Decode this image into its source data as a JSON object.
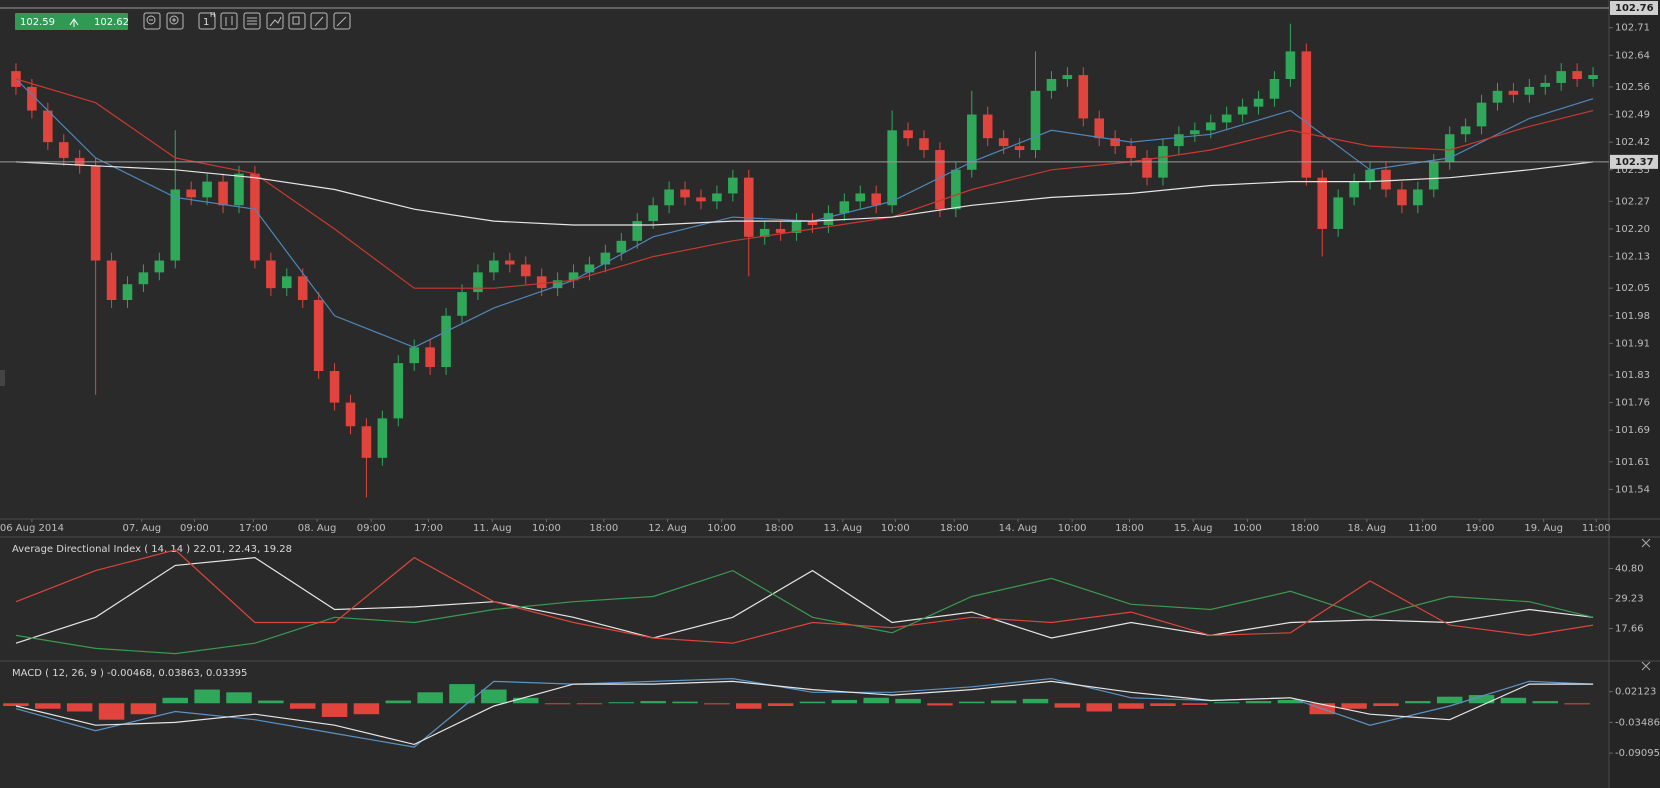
{
  "toolbar": {
    "bid": 102.59,
    "ask": 102.62,
    "timeframe": "1",
    "timeframe_unit": "H"
  },
  "chart_data": [
    {
      "type": "candlestick",
      "up_color": "#2fa85a",
      "down_color": "#e0443c",
      "xlim": [
        -0.5,
        100
      ],
      "ylim": [
        101.465,
        102.765
      ],
      "grid": false,
      "xticks": [
        {
          "value": 1,
          "label": "06 Aug 2014"
        },
        {
          "value": 7.9,
          "label": "07. Aug"
        },
        {
          "value": 11.2,
          "label": "09:00"
        },
        {
          "value": 14.9,
          "label": "17:00"
        },
        {
          "value": 18.9,
          "label": "08. Aug"
        },
        {
          "value": 22.3,
          "label": "09:00"
        },
        {
          "value": 25.9,
          "label": "17:00"
        },
        {
          "value": 29.9,
          "label": "11. Aug"
        },
        {
          "value": 33.3,
          "label": "10:00"
        },
        {
          "value": 36.9,
          "label": "18:00"
        },
        {
          "value": 40.9,
          "label": "12. Aug"
        },
        {
          "value": 44.3,
          "label": "10:00"
        },
        {
          "value": 47.9,
          "label": "18:00"
        },
        {
          "value": 51.9,
          "label": "13. Aug"
        },
        {
          "value": 55.2,
          "label": "10:00"
        },
        {
          "value": 58.9,
          "label": "18:00"
        },
        {
          "value": 62.9,
          "label": "14. Aug"
        },
        {
          "value": 66.3,
          "label": "10:00"
        },
        {
          "value": 69.9,
          "label": "18:00"
        },
        {
          "value": 73.9,
          "label": "15. Aug"
        },
        {
          "value": 77.3,
          "label": "10:00"
        },
        {
          "value": 80.9,
          "label": "18:00"
        },
        {
          "value": 84.8,
          "label": "18. Aug"
        },
        {
          "value": 88.3,
          "label": "11:00"
        },
        {
          "value": 91.9,
          "label": "19:00"
        },
        {
          "value": 95.9,
          "label": "19. Aug"
        },
        {
          "value": 99.2,
          "label": "11:00"
        }
      ],
      "yticks": [
        101.54,
        101.61,
        101.69,
        101.76,
        101.83,
        101.91,
        101.98,
        102.05,
        102.13,
        {
          "value": 102.2,
          "label": "102.20"
        },
        102.27,
        102.35,
        102.42,
        102.49,
        102.56,
        102.64,
        102.71
      ],
      "price_markers": [
        102.76,
        102.37
      ],
      "open": [
        102.6,
        102.56,
        102.5,
        102.42,
        102.38,
        102.36,
        102.12,
        102.02,
        102.06,
        102.09,
        102.12,
        102.3,
        102.28,
        102.32,
        102.26,
        102.34,
        102.12,
        102.05,
        102.08,
        102.02,
        101.84,
        101.76,
        101.7,
        101.62,
        101.72,
        101.86,
        101.9,
        101.85,
        101.98,
        102.04,
        102.09,
        102.12,
        102.11,
        102.08,
        102.05,
        102.07,
        102.09,
        102.11,
        102.14,
        102.17,
        102.22,
        102.26,
        102.3,
        102.28,
        102.27,
        102.29,
        102.33,
        102.18,
        102.2,
        102.19,
        102.22,
        102.21,
        102.24,
        102.27,
        102.29,
        102.26,
        102.45,
        102.43,
        102.4,
        102.25,
        102.35,
        102.49,
        102.43,
        102.41,
        102.4,
        102.55,
        102.58,
        102.59,
        102.48,
        102.43,
        102.41,
        102.38,
        102.33,
        102.41,
        102.44,
        102.45,
        102.47,
        102.49,
        102.51,
        102.53,
        102.58,
        102.65,
        102.33,
        102.2,
        102.28,
        102.32,
        102.35,
        102.3,
        102.26,
        102.3,
        102.37,
        102.44,
        102.46,
        102.52,
        102.55,
        102.54,
        102.56,
        102.57,
        102.6,
        102.58
      ],
      "high": [
        102.62,
        102.58,
        102.52,
        102.44,
        102.4,
        102.38,
        102.14,
        102.08,
        102.11,
        102.14,
        102.45,
        102.32,
        102.34,
        102.34,
        102.36,
        102.36,
        102.14,
        102.1,
        102.1,
        102.04,
        101.86,
        101.78,
        101.72,
        101.74,
        101.88,
        101.92,
        101.92,
        102.0,
        102.06,
        102.11,
        102.14,
        102.14,
        102.13,
        102.1,
        102.09,
        102.11,
        102.13,
        102.16,
        102.19,
        102.24,
        102.28,
        102.32,
        102.32,
        102.3,
        102.31,
        102.35,
        102.35,
        102.22,
        102.22,
        102.24,
        102.24,
        102.26,
        102.29,
        102.31,
        102.31,
        102.5,
        102.47,
        102.45,
        102.42,
        102.37,
        102.55,
        102.51,
        102.45,
        102.43,
        102.65,
        102.6,
        102.61,
        102.61,
        102.5,
        102.45,
        102.43,
        102.4,
        102.43,
        102.46,
        102.47,
        102.49,
        102.51,
        102.53,
        102.55,
        102.6,
        102.72,
        102.67,
        102.35,
        102.3,
        102.34,
        102.37,
        102.37,
        102.32,
        102.32,
        102.39,
        102.46,
        102.48,
        102.54,
        102.57,
        102.57,
        102.58,
        102.59,
        102.62,
        102.62,
        102.61
      ],
      "low": [
        102.54,
        102.48,
        102.4,
        102.36,
        102.34,
        101.78,
        102.0,
        102.0,
        102.04,
        102.07,
        102.1,
        102.26,
        102.26,
        102.24,
        102.24,
        102.1,
        102.03,
        102.03,
        102.0,
        101.82,
        101.74,
        101.68,
        101.52,
        101.6,
        101.7,
        101.84,
        101.83,
        101.83,
        101.96,
        102.02,
        102.07,
        102.09,
        102.06,
        102.03,
        102.03,
        102.05,
        102.07,
        102.09,
        102.12,
        102.15,
        102.2,
        102.24,
        102.26,
        102.25,
        102.25,
        102.27,
        102.08,
        102.16,
        102.17,
        102.17,
        102.19,
        102.19,
        102.22,
        102.25,
        102.24,
        102.24,
        102.41,
        102.38,
        102.23,
        102.23,
        102.33,
        102.41,
        102.39,
        102.38,
        102.38,
        102.53,
        102.56,
        102.46,
        102.41,
        102.39,
        102.36,
        102.31,
        102.31,
        102.39,
        102.42,
        102.43,
        102.45,
        102.47,
        102.49,
        102.51,
        102.56,
        102.31,
        102.13,
        102.18,
        102.26,
        102.3,
        102.28,
        102.24,
        102.24,
        102.28,
        102.35,
        102.42,
        102.44,
        102.5,
        102.52,
        102.52,
        102.54,
        102.55,
        102.56,
        102.56
      ],
      "close": [
        102.56,
        102.5,
        102.42,
        102.38,
        102.36,
        102.12,
        102.02,
        102.06,
        102.09,
        102.12,
        102.3,
        102.28,
        102.32,
        102.26,
        102.34,
        102.12,
        102.05,
        102.08,
        102.02,
        101.84,
        101.76,
        101.7,
        101.62,
        101.72,
        101.86,
        101.9,
        101.85,
        101.98,
        102.04,
        102.09,
        102.12,
        102.11,
        102.08,
        102.05,
        102.07,
        102.09,
        102.11,
        102.14,
        102.17,
        102.22,
        102.26,
        102.3,
        102.28,
        102.27,
        102.29,
        102.33,
        102.18,
        102.2,
        102.19,
        102.22,
        102.21,
        102.24,
        102.27,
        102.29,
        102.26,
        102.45,
        102.43,
        102.4,
        102.25,
        102.35,
        102.49,
        102.43,
        102.41,
        102.4,
        102.55,
        102.58,
        102.59,
        102.48,
        102.43,
        102.41,
        102.38,
        102.33,
        102.41,
        102.44,
        102.45,
        102.47,
        102.49,
        102.51,
        102.53,
        102.58,
        102.65,
        102.33,
        102.2,
        102.28,
        102.32,
        102.35,
        102.3,
        102.26,
        102.3,
        102.37,
        102.44,
        102.46,
        102.52,
        102.55,
        102.54,
        102.56,
        102.57,
        102.6,
        102.58,
        102.59
      ],
      "series": [
        {
          "color": "#4f86b8",
          "x": [
            0,
            5,
            10,
            15,
            20,
            25,
            30,
            35,
            40,
            45,
            50,
            55,
            60,
            65,
            70,
            75,
            80,
            85,
            90,
            95,
            99
          ],
          "values": [
            102.58,
            102.38,
            102.28,
            102.25,
            101.98,
            101.9,
            102.0,
            102.07,
            102.18,
            102.23,
            102.22,
            102.27,
            102.37,
            102.45,
            102.42,
            102.44,
            102.5,
            102.35,
            102.38,
            102.48,
            102.53
          ]
        },
        {
          "color": "#c8392f",
          "x": [
            0,
            5,
            10,
            15,
            20,
            25,
            30,
            35,
            40,
            45,
            50,
            55,
            60,
            65,
            70,
            75,
            80,
            85,
            90,
            95,
            99
          ],
          "values": [
            102.58,
            102.52,
            102.38,
            102.34,
            102.2,
            102.05,
            102.05,
            102.07,
            102.13,
            102.17,
            102.2,
            102.23,
            102.3,
            102.35,
            102.37,
            102.4,
            102.45,
            102.41,
            102.4,
            102.46,
            102.5
          ]
        },
        {
          "color": "#e6e6e6",
          "x": [
            0,
            5,
            10,
            15,
            20,
            25,
            30,
            35,
            40,
            45,
            50,
            55,
            60,
            65,
            70,
            75,
            80,
            85,
            90,
            95,
            99
          ],
          "values": [
            102.37,
            102.36,
            102.35,
            102.33,
            102.3,
            102.25,
            102.22,
            102.21,
            102.21,
            102.22,
            102.22,
            102.23,
            102.26,
            102.28,
            102.29,
            102.31,
            102.32,
            102.32,
            102.33,
            102.35,
            102.37
          ]
        }
      ]
    },
    {
      "type": "line",
      "title": "Average Directional Index ( 14, 14 ) 22.01, 22.43, 19.28",
      "xlim": [
        -0.5,
        100
      ],
      "ylim": [
        6.3,
        51.8
      ],
      "yticks": [
        {
          "value": 40.8,
          "label": "40.80"
        },
        29.23,
        17.66
      ],
      "series": [
        {
          "color": "#e6e6e6",
          "x": [
            0,
            5,
            10,
            15,
            20,
            25,
            30,
            35,
            40,
            45,
            50,
            55,
            60,
            65,
            70,
            75,
            80,
            85,
            90,
            95,
            99
          ],
          "values": [
            12,
            22,
            42,
            45,
            25,
            26,
            28,
            22,
            14,
            22,
            40,
            20,
            24,
            14,
            20,
            15,
            20,
            21,
            20,
            25,
            22
          ]
        },
        {
          "color": "#3a9a50",
          "x": [
            0,
            5,
            10,
            15,
            20,
            25,
            30,
            35,
            40,
            45,
            50,
            55,
            60,
            65,
            70,
            75,
            80,
            85,
            90,
            95,
            99
          ],
          "values": [
            15,
            10,
            8,
            12,
            22,
            20,
            25,
            28,
            30,
            40,
            22,
            16,
            30,
            37,
            27,
            25,
            32,
            22,
            30,
            28,
            22
          ]
        },
        {
          "color": "#d9463a",
          "x": [
            0,
            5,
            10,
            15,
            20,
            25,
            30,
            35,
            40,
            45,
            50,
            55,
            60,
            65,
            70,
            75,
            80,
            85,
            90,
            95,
            99
          ],
          "values": [
            28,
            40,
            48,
            20,
            20,
            45,
            28,
            20,
            14,
            12,
            20,
            18,
            22,
            20,
            24,
            15,
            16,
            36,
            19,
            15,
            19
          ]
        }
      ]
    },
    {
      "type": "line",
      "title": "MACD ( 12, 26, 9 ) -0.00468, 0.03863, 0.03395",
      "xlim": [
        -0.5,
        100
      ],
      "ylim": [
        -0.151,
        0.0735
      ],
      "yticks": [
        0.02123,
        -0.03486,
        -0.09095
      ],
      "positive_color": "#2fa85a",
      "negative_color": "#e0443c",
      "histogram": {
        "x": [
          0,
          2,
          4,
          6,
          8,
          10,
          12,
          14,
          16,
          18,
          20,
          22,
          24,
          26,
          28,
          30,
          32,
          34,
          36,
          38,
          40,
          42,
          44,
          46,
          48,
          50,
          52,
          54,
          56,
          58,
          60,
          62,
          64,
          66,
          68,
          70,
          72,
          74,
          76,
          78,
          80,
          82,
          84,
          86,
          88,
          90,
          92,
          94,
          96,
          98
        ],
        "values": [
          -0.005,
          -0.01,
          -0.015,
          -0.03,
          -0.02,
          0.01,
          0.025,
          0.02,
          0.005,
          -0.01,
          -0.025,
          -0.02,
          0.005,
          0.02,
          0.035,
          0.025,
          0.01,
          -0.001,
          -0.001,
          0.002,
          0.004,
          0.003,
          -0.002,
          -0.01,
          -0.005,
          0.003,
          0.006,
          0.01,
          0.008,
          -0.004,
          0.003,
          0.005,
          0.008,
          -0.008,
          -0.015,
          -0.01,
          -0.005,
          -0.003,
          0.002,
          0.004,
          0.006,
          -0.02,
          -0.01,
          -0.005,
          0.004,
          0.012,
          0.015,
          0.01,
          0.004,
          -0.002
        ]
      },
      "series": [
        {
          "color": "#5b93c4",
          "x": [
            0,
            5,
            10,
            15,
            20,
            25,
            30,
            35,
            40,
            45,
            50,
            55,
            60,
            65,
            70,
            75,
            80,
            85,
            90,
            95,
            99
          ],
          "values": [
            -0.01,
            -0.05,
            -0.015,
            -0.03,
            -0.055,
            -0.08,
            0.04,
            0.035,
            0.04,
            0.045,
            0.02,
            0.02,
            0.03,
            0.045,
            0.01,
            0.005,
            0.01,
            -0.04,
            -0.005,
            0.04,
            0.035
          ]
        },
        {
          "color": "#e6e6e6",
          "x": [
            0,
            5,
            10,
            15,
            20,
            25,
            30,
            35,
            40,
            45,
            50,
            55,
            60,
            65,
            70,
            75,
            80,
            85,
            90,
            95,
            99
          ],
          "values": [
            -0.005,
            -0.04,
            -0.035,
            -0.02,
            -0.04,
            -0.075,
            -0.005,
            0.035,
            0.035,
            0.04,
            0.025,
            0.015,
            0.025,
            0.04,
            0.02,
            0.005,
            0.01,
            -0.02,
            -0.03,
            0.035,
            0.035
          ]
        }
      ]
    }
  ]
}
